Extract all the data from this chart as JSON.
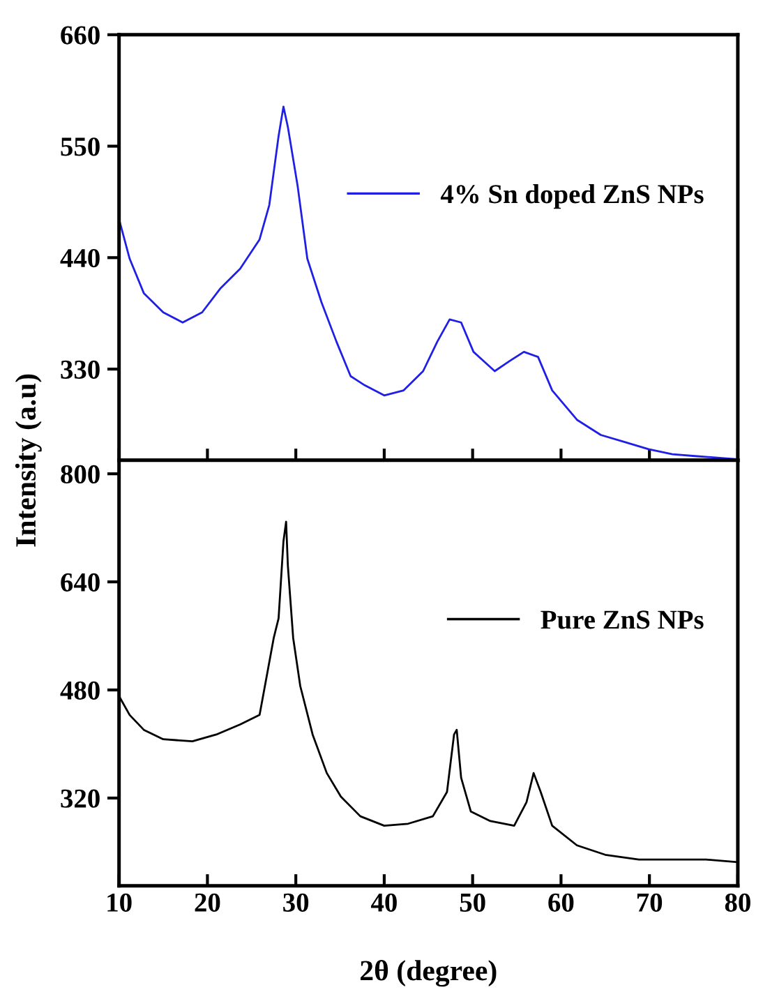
{
  "chart_data": [
    {
      "type": "line",
      "ylabel": "Intensity (a.u)",
      "xlim": [
        10,
        80
      ],
      "xticks": [
        {
          "value": 10,
          "label": null
        },
        {
          "value": 20,
          "label": null
        },
        {
          "value": 30,
          "label": null
        },
        {
          "value": 40,
          "label": null
        },
        {
          "value": 50,
          "label": null
        },
        {
          "value": 60,
          "label": null
        },
        {
          "value": 70,
          "label": null
        },
        {
          "value": 80,
          "label": null
        }
      ],
      "ylim": [
        240,
        660
      ],
      "yticks": [
        330,
        440,
        550,
        660
      ],
      "tick_labels": "y",
      "grid": false,
      "legend": "right",
      "series": [
        {
          "name": "4% Sn doped ZnS NPs",
          "color": "#1f1fe6",
          "x": [
            10,
            11.2,
            12.8,
            15,
            17.2,
            19.4,
            21.5,
            23.7,
            25.9,
            27,
            28.05,
            28.6,
            29.1,
            30.2,
            31.3,
            32.9,
            34.6,
            36.2,
            37.8,
            40,
            42.2,
            44.4,
            46,
            47.4,
            48.7,
            50.1,
            52.5,
            54.2,
            55.8,
            57.4,
            59,
            61.8,
            64.5,
            67.2,
            69.9,
            72.6,
            75.4,
            80
          ],
          "values": [
            478,
            439,
            405,
            386,
            376,
            386,
            410,
            429,
            458,
            492,
            560,
            589,
            569,
            511,
            439,
            396,
            357,
            323,
            314,
            304,
            309,
            328,
            357,
            379,
            376,
            347,
            328,
            338,
            347,
            342,
            309,
            280,
            265,
            258,
            251,
            246,
            244,
            241
          ]
        }
      ]
    },
    {
      "type": "line",
      "xlabel": "2θ (degree)",
      "xlim": [
        10,
        80
      ],
      "xticks": [
        10,
        20,
        30,
        40,
        50,
        60,
        70,
        80
      ],
      "ylim": [
        190,
        820
      ],
      "yticks": [
        320,
        480,
        640,
        800
      ],
      "grid": false,
      "legend": "right",
      "series": [
        {
          "name": "Pure ZnS NPs",
          "color": "#000000",
          "x": [
            10,
            11.2,
            12.8,
            15,
            18.3,
            21,
            23.7,
            25.9,
            26.7,
            27.5,
            28.05,
            28.6,
            28.9,
            29.1,
            29.7,
            30.5,
            31.9,
            33.5,
            35.1,
            37.3,
            40,
            42.7,
            45.5,
            47.1,
            47.9,
            48.2,
            48.7,
            49.8,
            52,
            54.7,
            56.1,
            56.9,
            57.7,
            59,
            61.8,
            65,
            68.8,
            72.6,
            76.4,
            80
          ],
          "values": [
            471,
            443,
            421,
            407,
            404,
            414,
            429,
            443,
            500,
            557,
            586,
            700,
            729,
            664,
            557,
            486,
            414,
            357,
            322,
            293,
            279,
            282,
            293,
            329,
            414,
            421,
            350,
            300,
            286,
            279,
            314,
            357,
            329,
            279,
            250,
            236,
            229,
            229,
            229,
            225
          ]
        }
      ]
    }
  ]
}
